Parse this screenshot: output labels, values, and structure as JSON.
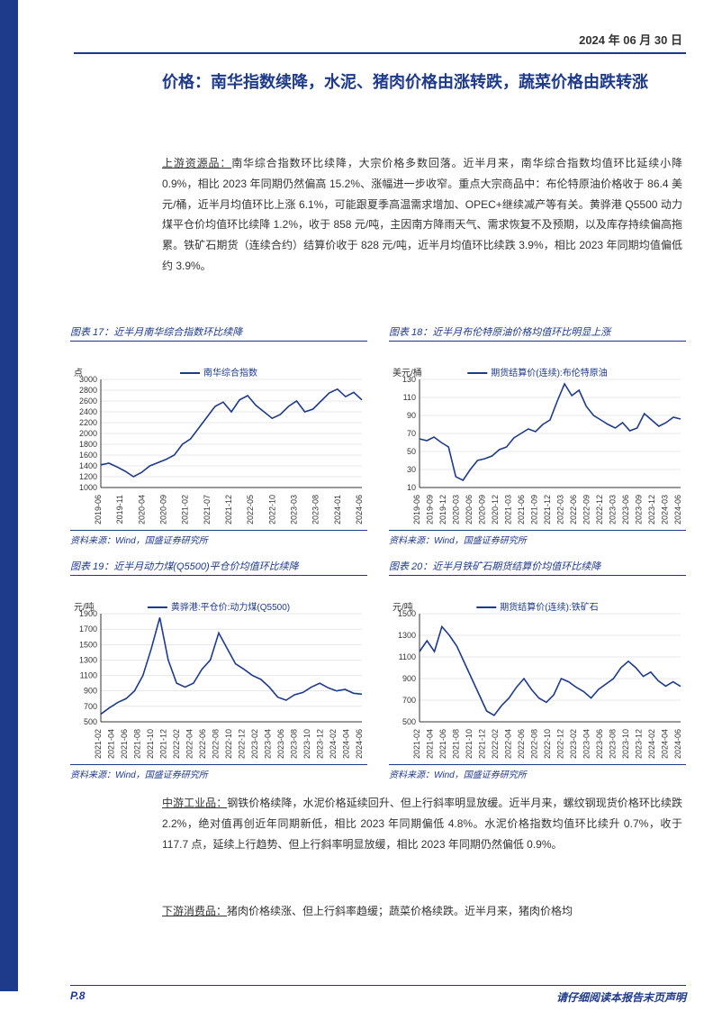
{
  "header": {
    "date": "2024 年 06 月 30 日"
  },
  "title": "价格：南华指数续降，水泥、猪肉价格由涨转跌，蔬菜价格由跌转涨",
  "paragraphs": {
    "p1_label": "上游资源品：",
    "p1_body": "南华综合指数环比续降，大宗价格多数回落。近半月来，南华综合指数均值环比延续小降 0.9%，相比 2023 年同期仍然偏高 15.2%、涨幅进一步收窄。重点大宗商品中：布伦特原油价格收于 86.4 美元/桶，近半月均值环比上涨 6.1%，可能跟夏季高温需求增加、OPEC+继续减产等有关。黄骅港 Q5500 动力煤平仓价均值环比续降 1.2%，收于 858 元/吨，主因南方降雨天气、需求恢复不及预期，以及库存持续偏高拖累。铁矿石期货（连续合约）结算价收于 828 元/吨，近半月均值环比续跌 3.9%，相比 2023 年同期均值偏低约 3.9%。",
    "p2_label": "中游工业品：",
    "p2_body": "钢铁价格续降，水泥价格延续回升、但上行斜率明显放缓。近半月来，螺纹钢现货价格环比续跌 2.2%，绝对值再创近年同期新低，相比 2023 年同期偏低 4.8%。水泥价格指数均值环比续升 0.7%，收于 117.7 点，延续上行趋势、但上行斜率明显放缓，相比 2023 年同期仍然偏低 0.9%。",
    "p3_label": "下游消费品：",
    "p3_body": "猪肉价格续涨、但上行斜率趋缓；蔬菜价格续跌。近半月来，猪肉价格均"
  },
  "charts": {
    "c17": {
      "title": "图表 17：近半月南华综合指数环比续降",
      "unit": "点",
      "legend": "南华综合指数",
      "color": "#1e3a8a",
      "source": "资料来源：Wind，国盛证券研究所",
      "ymin": 1000,
      "ymax": 3000,
      "ystep": 200,
      "xlabels": [
        "2019-06",
        "2019-11",
        "2020-04",
        "2020-09",
        "2021-02",
        "2021-07",
        "2021-12",
        "2022-05",
        "2022-10",
        "2023-03",
        "2023-08",
        "2024-01",
        "2024-06"
      ],
      "series": [
        1420,
        1450,
        1380,
        1300,
        1200,
        1280,
        1400,
        1460,
        1520,
        1600,
        1800,
        1900,
        2100,
        2300,
        2500,
        2580,
        2400,
        2620,
        2700,
        2520,
        2400,
        2280,
        2350,
        2500,
        2600,
        2400,
        2450,
        2600,
        2750,
        2820,
        2680,
        2760,
        2620
      ]
    },
    "c18": {
      "title": "图表 18：近半月布伦特原油价格均值环比明显上涨",
      "unit": "美元/桶",
      "legend": "期货结算价(连续):布伦特原油",
      "color": "#1e3a8a",
      "source": "资料来源：Wind，国盛证券研究所",
      "ymin": 10,
      "ymax": 130,
      "ystep": 20,
      "xlabels": [
        "2019-06",
        "2019-09",
        "2019-12",
        "2020-03",
        "2020-06",
        "2020-09",
        "2020-12",
        "2021-03",
        "2021-06",
        "2021-09",
        "2021-12",
        "2022-03",
        "2022-06",
        "2022-09",
        "2022-12",
        "2023-03",
        "2023-06",
        "2023-09",
        "2023-12",
        "2024-03",
        "2024-06"
      ],
      "series": [
        64,
        62,
        66,
        60,
        55,
        22,
        18,
        30,
        40,
        42,
        45,
        52,
        55,
        65,
        70,
        75,
        72,
        80,
        85,
        106,
        125,
        112,
        118,
        100,
        90,
        85,
        80,
        76,
        82,
        73,
        76,
        92,
        85,
        78,
        82,
        88,
        86
      ]
    },
    "c19": {
      "title": "图表 19：近半月动力煤(Q5500)平仓价均值环比续降",
      "unit": "元/吨",
      "legend": "黄骅港:平仓价:动力煤(Q5500)",
      "color": "#1e3a8a",
      "source": "资料来源：Wind，国盛证券研究所",
      "ymin": 500,
      "ymax": 1900,
      "ystep": 200,
      "xlabels": [
        "2021-02",
        "2021-04",
        "2021-06",
        "2021-08",
        "2021-10",
        "2021-12",
        "2022-02",
        "2022-04",
        "2022-06",
        "2022-08",
        "2022-10",
        "2022-12",
        "2023-02",
        "2023-04",
        "2023-06",
        "2023-08",
        "2023-10",
        "2023-12",
        "2024-02",
        "2024-04",
        "2024-06"
      ],
      "series": [
        600,
        680,
        750,
        800,
        900,
        1100,
        1450,
        1850,
        1300,
        1000,
        950,
        1000,
        1180,
        1300,
        1650,
        1450,
        1250,
        1180,
        1100,
        1050,
        950,
        820,
        780,
        850,
        880,
        950,
        1000,
        940,
        900,
        920,
        870,
        858
      ]
    },
    "c20": {
      "title": "图表 20：近半月铁矿石期货结算价均值环比续降",
      "unit": "元/吨",
      "legend": "期货结算价(连续):铁矿石",
      "color": "#1e3a8a",
      "source": "资料来源：Wind，国盛证券研究所",
      "ymin": 500,
      "ymax": 1500,
      "ystep": 200,
      "xlabels": [
        "2021-02",
        "2021-04",
        "2021-06",
        "2021-08",
        "2021-10",
        "2021-12",
        "2022-02",
        "2022-04",
        "2022-06",
        "2022-08",
        "2022-10",
        "2022-12",
        "2023-02",
        "2023-04",
        "2023-06",
        "2023-08",
        "2023-10",
        "2023-12",
        "2024-02",
        "2024-04",
        "2024-06"
      ],
      "series": [
        1150,
        1250,
        1150,
        1380,
        1300,
        1200,
        1050,
        900,
        750,
        600,
        560,
        650,
        720,
        820,
        900,
        800,
        720,
        680,
        750,
        900,
        870,
        820,
        780,
        720,
        800,
        850,
        900,
        1000,
        1060,
        1000,
        920,
        960,
        880,
        830,
        870,
        828
      ]
    }
  },
  "footer": {
    "page": "P.8",
    "note": "请仔细阅读本报告末页声明"
  },
  "style": {
    "accent": "#1e3a8a",
    "background": "#ffffff",
    "text_color": "#333333",
    "grid_color": "#d0d0d0",
    "tick_fontsize": 9,
    "axis_fontsize": 10
  }
}
